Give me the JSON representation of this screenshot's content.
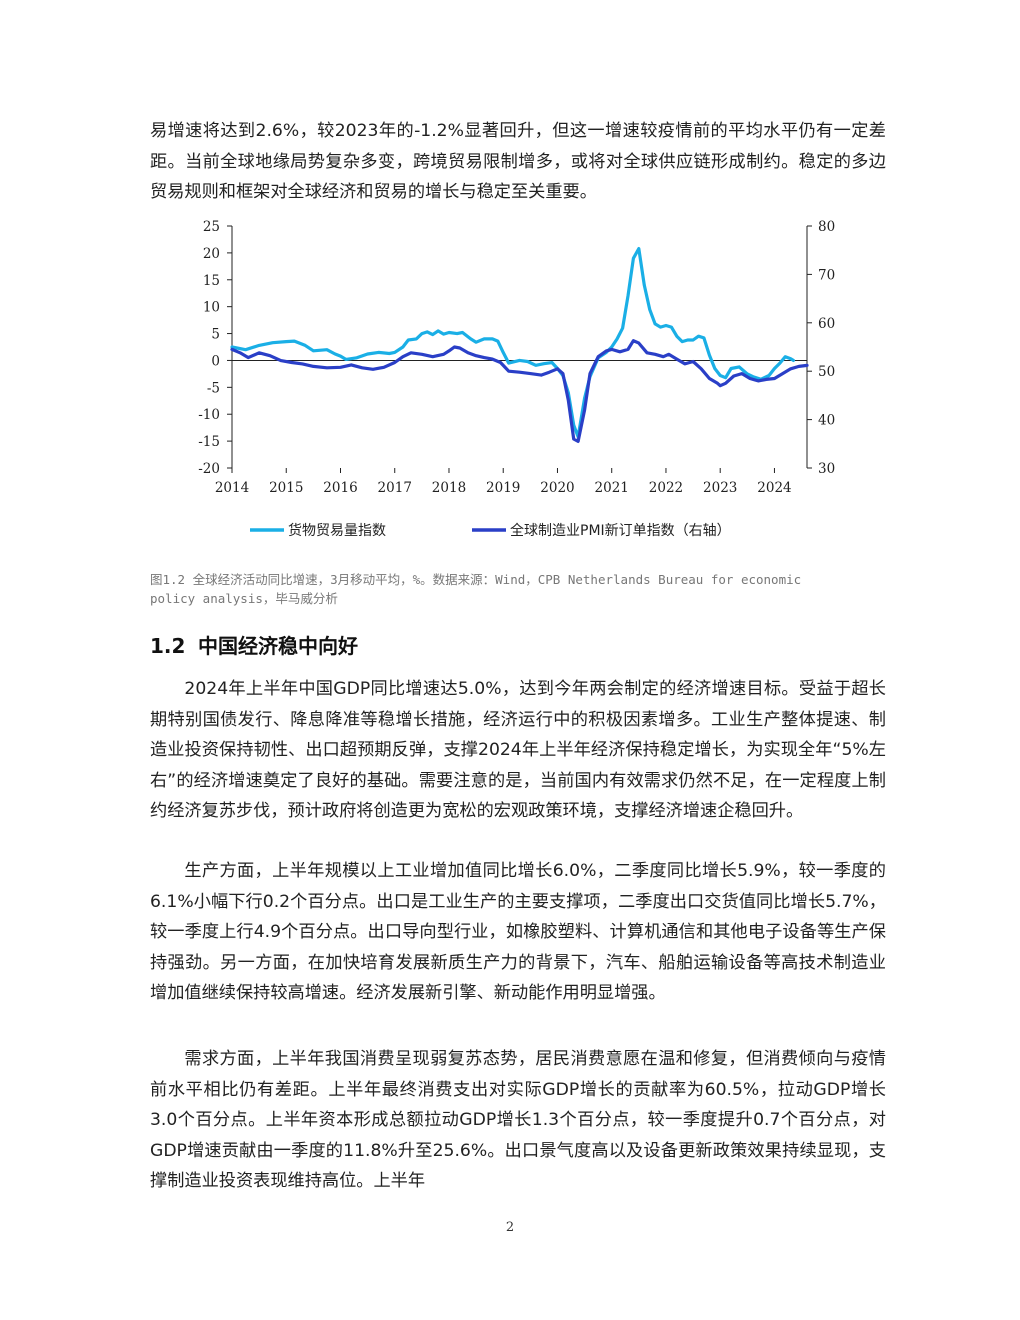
{
  "body": {
    "intro": "易增速将达到2.6%，较2023年的-1.2%显著回升，但这一增速较疫情前的平均水平仍有一定差距。当前全球地缘局势复杂多变，跨境贸易限制增多，或将对全球供应链形成制约。稳定的多边贸易规则和框架对全球经济和贸易的增长与稳定至关重要。",
    "section_number": "1.2",
    "section_title": "中国经济稳中向好",
    "p1": "2024年上半年中国GDP同比增速达5.0%，达到今年两会制定的经济增速目标。受益于超长期特别国债发行、降息降准等稳增长措施，经济运行中的积极因素增多。工业生产整体提速、制造业投资保持韧性、出口超预期反弹，支撑2024年上半年经济保持稳定增长，为实现全年“5%左右”的经济增速奠定了良好的基础。需要注意的是，当前国内有效需求仍然不足，在一定程度上制约经济复苏步伐，预计政府将创造更为宽松的宏观政策环境，支撑经济增速企稳回升。",
    "p2": "生产方面，上半年规模以上工业增加值同比增长6.0%，二季度同比增长5.9%，较一季度的6.1%小幅下行0.2个百分点。出口是工业生产的主要支撑项，二季度出口交货值同比增长5.7%，较一季度上行4.9个百分点。出口导向型行业，如橡胶塑料、计算机通信和其他电子设备等生产保持强劲。另一方面，在加快培育发展新质生产力的背景下，汽车、船舶运输设备等高技术制造业增加值继续保持较高增速。经济发展新引擎、新动能作用明显增强。",
    "p3": "需求方面，上半年我国消费呈现弱复苏态势，居民消费意愿在温和修复，但消费倾向与疫情前水平相比仍有差距。上半年最终消费支出对实际GDP增长的贡献率为60.5%，拉动GDP增长3.0个百分点。上半年资本形成总额拉动GDP增长1.3个百分点，较一季度提升0.7个百分点，对GDP增速贡献由一季度的11.8%升至25.6%。出口景气度高以及设备更新政策效果持续显现，支撑制造业投资表现维持高位。上半年"
  },
  "figure": {
    "caption": "图1.2  全球经济活动同比增速，3月移动平均，%。数据来源：Wind，CPB Netherlands Bureau for economic policy analysis，毕马威分析"
  },
  "page_number": "2",
  "chart_data": {
    "type": "line",
    "title": "",
    "x_ticks": [
      "2014",
      "2015",
      "2016",
      "2017",
      "2018",
      "2019",
      "2020",
      "2021",
      "2022",
      "2023",
      "2024"
    ],
    "x_range": [
      2014.0,
      2024.6
    ],
    "y_left": {
      "range": [
        -20,
        25
      ],
      "ticks": [
        25,
        20,
        15,
        10,
        5,
        0,
        -5,
        -10,
        -15,
        -20
      ]
    },
    "y_right": {
      "range": [
        30,
        80
      ],
      "ticks": [
        80,
        70,
        60,
        50,
        40,
        30
      ]
    },
    "legend_position": "bottom",
    "series": [
      {
        "name": "货物贸易量指数",
        "axis": "left",
        "color": "#1AAFE6",
        "points": [
          [
            2014.0,
            2.5
          ],
          [
            2014.25,
            2.0
          ],
          [
            2014.5,
            2.8
          ],
          [
            2014.75,
            3.3
          ],
          [
            2015.0,
            3.5
          ],
          [
            2015.15,
            3.6
          ],
          [
            2015.35,
            2.8
          ],
          [
            2015.5,
            1.8
          ],
          [
            2015.75,
            2.0
          ],
          [
            2015.9,
            1.2
          ],
          [
            2016.0,
            0.8
          ],
          [
            2016.1,
            0.2
          ],
          [
            2016.3,
            0.5
          ],
          [
            2016.5,
            1.2
          ],
          [
            2016.7,
            1.5
          ],
          [
            2016.9,
            1.3
          ],
          [
            2017.0,
            1.5
          ],
          [
            2017.15,
            2.5
          ],
          [
            2017.25,
            3.8
          ],
          [
            2017.4,
            4.0
          ],
          [
            2017.5,
            5.0
          ],
          [
            2017.6,
            5.3
          ],
          [
            2017.7,
            4.8
          ],
          [
            2017.8,
            5.5
          ],
          [
            2017.9,
            4.9
          ],
          [
            2018.0,
            5.2
          ],
          [
            2018.15,
            5.0
          ],
          [
            2018.25,
            5.2
          ],
          [
            2018.4,
            4.0
          ],
          [
            2018.5,
            3.4
          ],
          [
            2018.65,
            4.0
          ],
          [
            2018.8,
            4.0
          ],
          [
            2018.9,
            3.6
          ],
          [
            2019.0,
            1.5
          ],
          [
            2019.1,
            -0.5
          ],
          [
            2019.3,
            0.0
          ],
          [
            2019.45,
            -0.2
          ],
          [
            2019.6,
            -0.9
          ],
          [
            2019.75,
            -0.6
          ],
          [
            2019.9,
            -0.4
          ],
          [
            2020.0,
            -1.5
          ],
          [
            2020.1,
            -2.8
          ],
          [
            2020.2,
            -6.0
          ],
          [
            2020.3,
            -12.0
          ],
          [
            2020.38,
            -14.2
          ],
          [
            2020.5,
            -7.0
          ],
          [
            2020.6,
            -3.0
          ],
          [
            2020.75,
            0.5
          ],
          [
            2020.9,
            1.5
          ],
          [
            2021.0,
            2.5
          ],
          [
            2021.1,
            4.0
          ],
          [
            2021.2,
            6.0
          ],
          [
            2021.3,
            12.0
          ],
          [
            2021.4,
            19.0
          ],
          [
            2021.5,
            20.8
          ],
          [
            2021.6,
            14.0
          ],
          [
            2021.7,
            9.5
          ],
          [
            2021.8,
            6.8
          ],
          [
            2021.9,
            6.2
          ],
          [
            2022.0,
            6.5
          ],
          [
            2022.1,
            6.2
          ],
          [
            2022.2,
            4.5
          ],
          [
            2022.3,
            3.5
          ],
          [
            2022.4,
            3.8
          ],
          [
            2022.5,
            3.8
          ],
          [
            2022.6,
            4.5
          ],
          [
            2022.7,
            4.2
          ],
          [
            2022.8,
            1.0
          ],
          [
            2022.9,
            -1.5
          ],
          [
            2023.0,
            -2.8
          ],
          [
            2023.1,
            -3.2
          ],
          [
            2023.2,
            -1.5
          ],
          [
            2023.35,
            -1.2
          ],
          [
            2023.5,
            -2.5
          ],
          [
            2023.6,
            -3.0
          ],
          [
            2023.75,
            -3.5
          ],
          [
            2023.9,
            -2.8
          ],
          [
            2024.0,
            -1.5
          ],
          [
            2024.1,
            -0.5
          ],
          [
            2024.2,
            0.7
          ],
          [
            2024.3,
            0.3
          ],
          [
            2024.35,
            0.0
          ]
        ]
      },
      {
        "name": "全球制造业PMI新订单指数（右轴）",
        "axis": "right",
        "color": "#2A3FC7",
        "points": [
          [
            2014.0,
            54.5
          ],
          [
            2014.15,
            53.8
          ],
          [
            2014.3,
            52.8
          ],
          [
            2014.5,
            53.8
          ],
          [
            2014.7,
            53.2
          ],
          [
            2014.9,
            52.2
          ],
          [
            2015.1,
            51.8
          ],
          [
            2015.3,
            51.5
          ],
          [
            2015.5,
            51.0
          ],
          [
            2015.75,
            50.7
          ],
          [
            2016.0,
            50.8
          ],
          [
            2016.2,
            51.3
          ],
          [
            2016.4,
            50.7
          ],
          [
            2016.6,
            50.4
          ],
          [
            2016.8,
            50.8
          ],
          [
            2017.0,
            51.8
          ],
          [
            2017.15,
            53.0
          ],
          [
            2017.3,
            53.8
          ],
          [
            2017.5,
            53.5
          ],
          [
            2017.7,
            53.0
          ],
          [
            2017.9,
            53.5
          ],
          [
            2018.0,
            54.2
          ],
          [
            2018.1,
            55.0
          ],
          [
            2018.2,
            54.8
          ],
          [
            2018.35,
            53.8
          ],
          [
            2018.5,
            53.2
          ],
          [
            2018.65,
            52.8
          ],
          [
            2018.8,
            52.5
          ],
          [
            2018.95,
            51.8
          ],
          [
            2019.1,
            50.0
          ],
          [
            2019.3,
            49.8
          ],
          [
            2019.5,
            49.5
          ],
          [
            2019.7,
            49.2
          ],
          [
            2019.85,
            49.8
          ],
          [
            2020.0,
            50.5
          ],
          [
            2020.1,
            49.5
          ],
          [
            2020.2,
            44.0
          ],
          [
            2020.3,
            36.0
          ],
          [
            2020.38,
            35.5
          ],
          [
            2020.5,
            42.0
          ],
          [
            2020.6,
            49.5
          ],
          [
            2020.75,
            53.0
          ],
          [
            2020.9,
            54.2
          ],
          [
            2021.0,
            54.5
          ],
          [
            2021.15,
            54.0
          ],
          [
            2021.3,
            54.5
          ],
          [
            2021.4,
            56.3
          ],
          [
            2021.5,
            55.8
          ],
          [
            2021.65,
            53.8
          ],
          [
            2021.8,
            53.5
          ],
          [
            2021.95,
            53.0
          ],
          [
            2022.05,
            53.5
          ],
          [
            2022.2,
            52.5
          ],
          [
            2022.35,
            51.5
          ],
          [
            2022.5,
            52.0
          ],
          [
            2022.65,
            50.5
          ],
          [
            2022.8,
            48.5
          ],
          [
            2022.95,
            47.5
          ],
          [
            2023.0,
            47.0
          ],
          [
            2023.1,
            47.5
          ],
          [
            2023.25,
            49.0
          ],
          [
            2023.4,
            49.5
          ],
          [
            2023.55,
            48.5
          ],
          [
            2023.7,
            48.0
          ],
          [
            2023.85,
            48.3
          ],
          [
            2024.0,
            48.5
          ],
          [
            2024.15,
            49.5
          ],
          [
            2024.3,
            50.5
          ],
          [
            2024.45,
            51.0
          ],
          [
            2024.6,
            51.2
          ]
        ]
      }
    ]
  }
}
